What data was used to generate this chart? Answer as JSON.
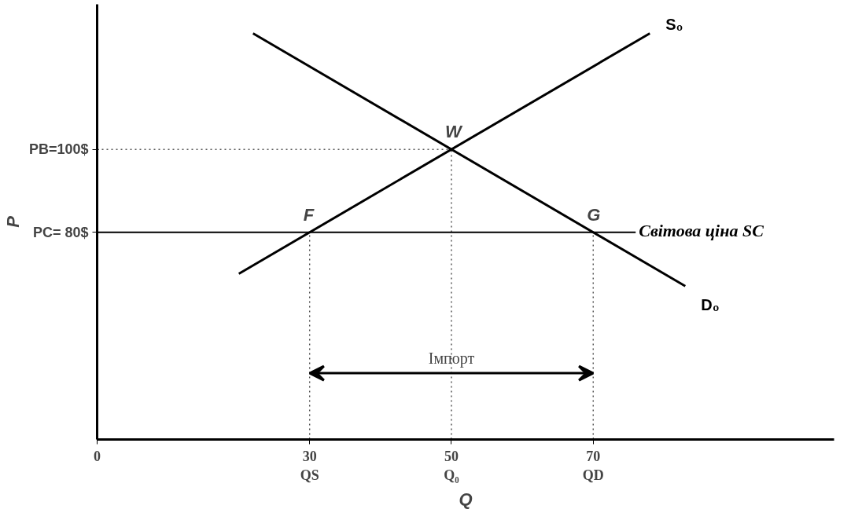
{
  "chart_data": {
    "type": "line",
    "xlabel": "Q",
    "ylabel": "P",
    "xlim": [
      0,
      104
    ],
    "ylim": [
      30,
      135
    ],
    "xticks": [
      {
        "value": 0,
        "label": "0"
      },
      {
        "value": 30,
        "label": "30\nQS"
      },
      {
        "value": 50,
        "label": "50\nQ₀"
      },
      {
        "value": 70,
        "label": "70\nQD"
      }
    ],
    "yticks": [
      {
        "value": 80,
        "label": "PC= 80$"
      },
      {
        "value": 100,
        "label": "PB=100$"
      }
    ],
    "grid": false,
    "series": [
      {
        "name": "S₀",
        "color": "#000000",
        "x": [
          20,
          78
        ],
        "values": [
          70,
          128
        ]
      },
      {
        "name": "D₀",
        "color": "#000000",
        "x": [
          22,
          83
        ],
        "values": [
          128,
          67
        ]
      }
    ],
    "ref_lines": [
      {
        "axis": "y",
        "value": 80,
        "label": "Світова ціна SC",
        "line_style": "solid",
        "color": "#000000"
      },
      {
        "axis": "y",
        "value": 100,
        "line_style": "dotted",
        "color": "#000000"
      },
      {
        "axis": "x",
        "value": 30,
        "line_style": "dotted",
        "color": "#000000"
      },
      {
        "axis": "x",
        "value": 50,
        "line_style": "dotted",
        "color": "#000000"
      },
      {
        "axis": "x",
        "value": 70,
        "line_style": "dotted",
        "color": "#000000"
      }
    ],
    "annotations": [
      {
        "text": "Імпорт",
        "x": 50,
        "y": 46
      },
      {
        "text": "W",
        "x": 50,
        "y": 100
      },
      {
        "text": "F",
        "x": 30,
        "y": 80
      },
      {
        "text": "G",
        "x": 70,
        "y": 80
      }
    ]
  }
}
